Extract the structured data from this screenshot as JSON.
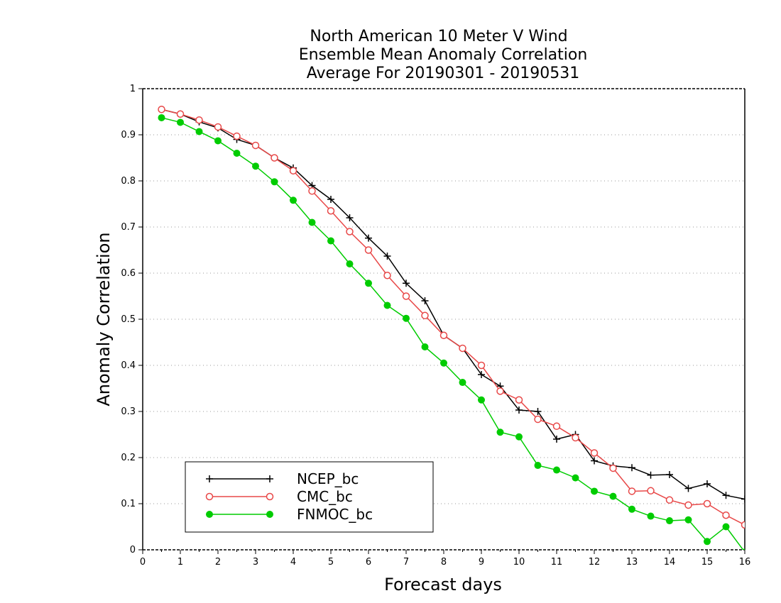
{
  "chart_data": {
    "type": "line",
    "title": [
      "North American 10 Meter V Wind",
      "Ensemble Mean Anomaly Correlation",
      "Average For 20190301 - 20190531"
    ],
    "xlabel": "Forecast days",
    "ylabel": "Anomaly Correlation",
    "xlim": [
      0,
      16
    ],
    "ylim": [
      0,
      1
    ],
    "xticks": [
      "0",
      "1",
      "2",
      "3",
      "4",
      "5",
      "6",
      "7",
      "8",
      "9",
      "10",
      "11",
      "12",
      "13",
      "14",
      "15",
      "16"
    ],
    "yticks": [
      "0",
      "0.1",
      "0.2",
      "0.3",
      "0.4",
      "0.5",
      "0.6",
      "0.7",
      "0.8",
      "0.9",
      "1"
    ],
    "grid": "horizontal dotted",
    "legend_placement": "bottom-left",
    "x": [
      0.5,
      1,
      1.5,
      2,
      2.5,
      3,
      3.5,
      4,
      4.5,
      5,
      5.5,
      6,
      6.5,
      7,
      7.5,
      8,
      8.5,
      9,
      9.5,
      10,
      10.5,
      11,
      11.5,
      12,
      12.5,
      13,
      13.5,
      14,
      14.5,
      15,
      15.5,
      16
    ],
    "series": [
      {
        "name": "NCEP_bc",
        "color": "#000000",
        "marker": "plus",
        "values": [
          0.955,
          0.945,
          0.928,
          0.915,
          0.89,
          0.877,
          0.85,
          0.828,
          0.79,
          0.76,
          0.72,
          0.676,
          0.637,
          0.578,
          0.54,
          0.465,
          0.437,
          0.38,
          0.355,
          0.303,
          0.3,
          0.24,
          0.25,
          0.193,
          0.182,
          0.178,
          0.162,
          0.163,
          0.133,
          0.143,
          0.118,
          0.11
        ]
      },
      {
        "name": "CMC_bc",
        "color": "#e84848",
        "marker": "open-circle",
        "values": [
          0.955,
          0.945,
          0.932,
          0.917,
          0.897,
          0.877,
          0.85,
          0.822,
          0.778,
          0.735,
          0.69,
          0.65,
          0.595,
          0.55,
          0.508,
          0.465,
          0.437,
          0.4,
          0.344,
          0.325,
          0.283,
          0.268,
          0.243,
          0.21,
          0.177,
          0.127,
          0.128,
          0.108,
          0.097,
          0.1,
          0.075,
          0.054
        ]
      },
      {
        "name": "FNMOC_bc",
        "color": "#00cc00",
        "marker": "filled-circle",
        "values": [
          0.937,
          0.927,
          0.907,
          0.887,
          0.86,
          0.832,
          0.798,
          0.758,
          0.71,
          0.67,
          0.62,
          0.578,
          0.53,
          0.502,
          0.44,
          0.405,
          0.363,
          0.325,
          0.255,
          0.245,
          0.183,
          0.173,
          0.156,
          0.127,
          0.116,
          0.088,
          0.073,
          0.063,
          0.065,
          0.018,
          0.05,
          -0.005
        ]
      }
    ]
  }
}
